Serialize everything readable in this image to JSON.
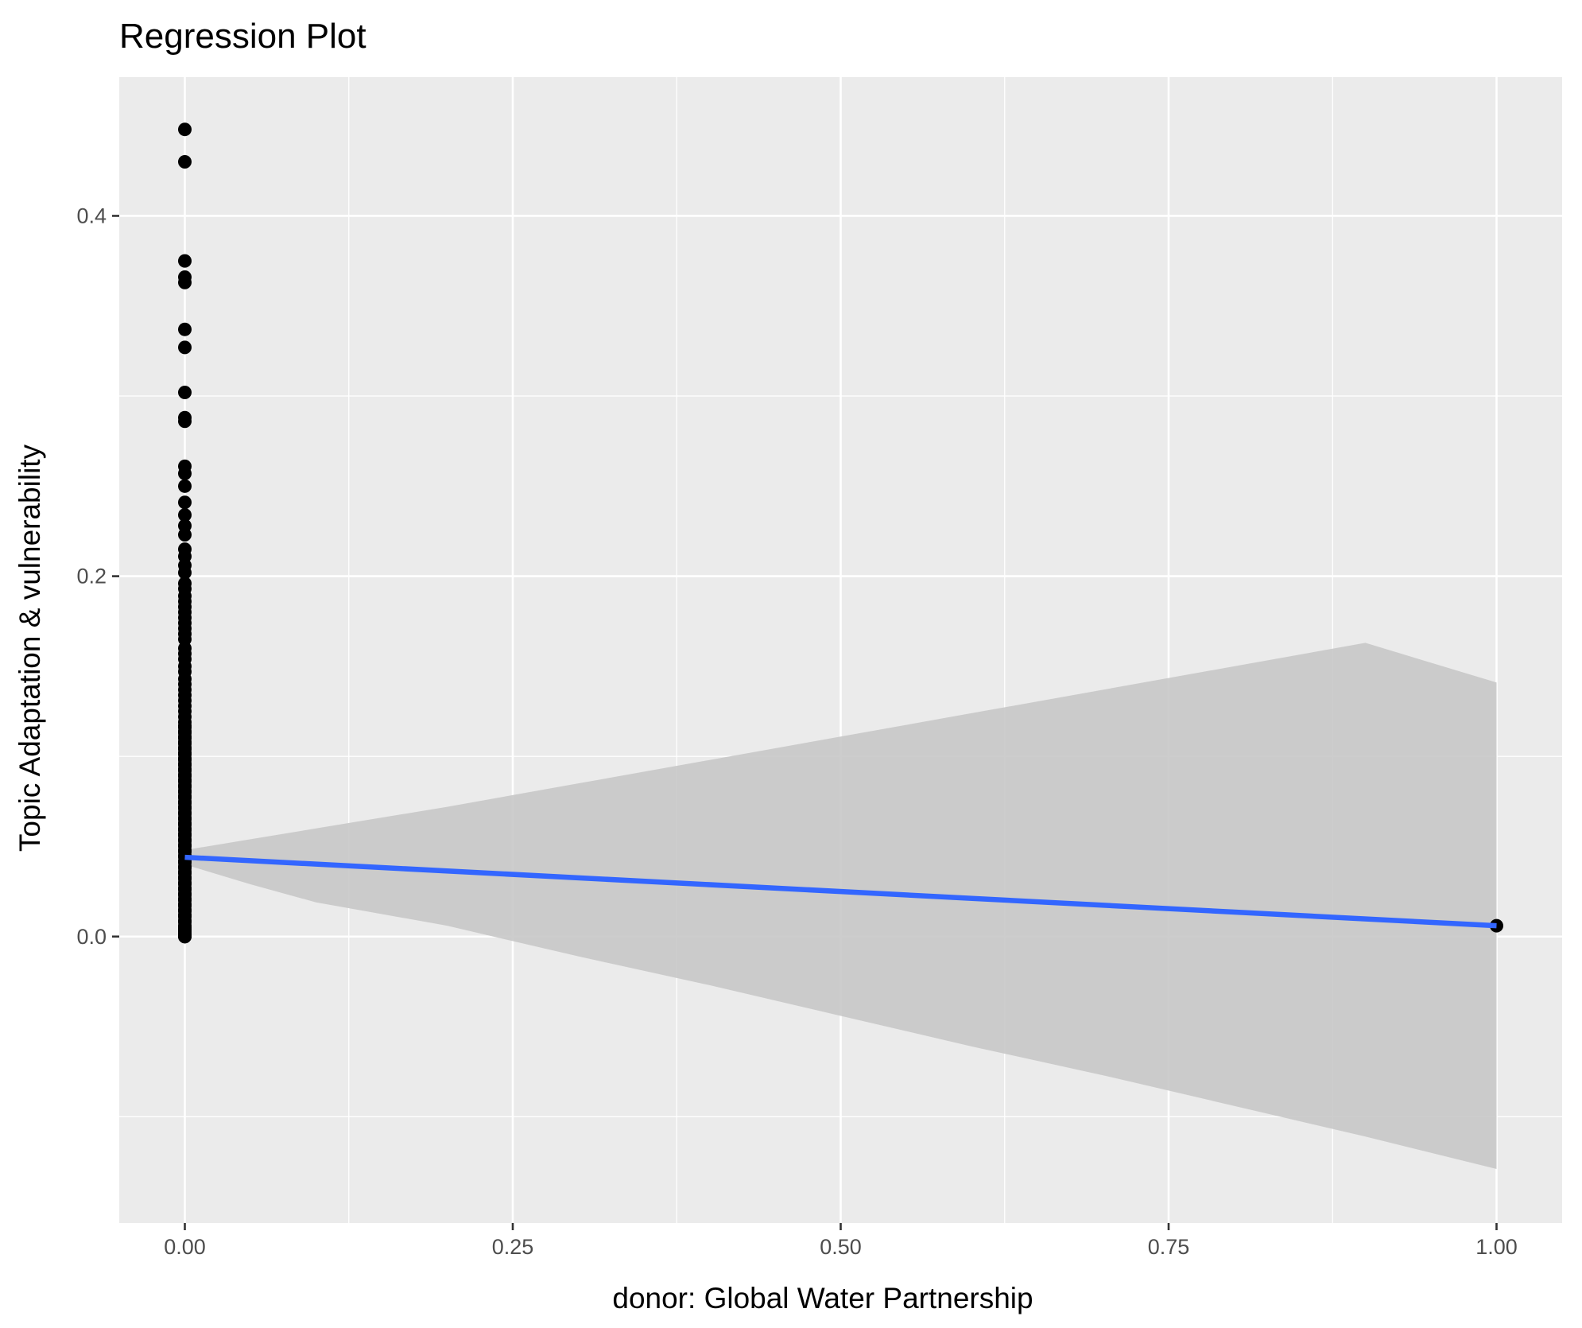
{
  "chart_data": {
    "type": "scatter",
    "title": "Regression Plot",
    "xlabel": "donor: Global Water Partnership",
    "ylabel": "Topic Adaptation & vulnerability",
    "xlim": [
      -0.05,
      1.05
    ],
    "ylim": [
      -0.159,
      0.477
    ],
    "x_ticks": [
      0.0,
      0.25,
      0.5,
      0.75,
      1.0
    ],
    "x_tick_labels": [
      "0.00",
      "0.25",
      "0.50",
      "0.75",
      "1.00"
    ],
    "y_ticks": [
      0.0,
      0.2,
      0.4
    ],
    "y_tick_labels": [
      "0.0",
      "0.2",
      "0.4"
    ],
    "grid": true,
    "legend": "none",
    "points": {
      "color": "#000000",
      "x": [
        0,
        0,
        0,
        0,
        0,
        0,
        0,
        0,
        0,
        0,
        0,
        0,
        0,
        0,
        0,
        0,
        0,
        0,
        0,
        0,
        0,
        0,
        0,
        0,
        0,
        0,
        0,
        0,
        0,
        0,
        0,
        0,
        0,
        0,
        0,
        0,
        0,
        0,
        0,
        0,
        0,
        0,
        0,
        0,
        0,
        0,
        0,
        0,
        0,
        0,
        0,
        0,
        0,
        0,
        0,
        0,
        0,
        0,
        0,
        0,
        0,
        0,
        0,
        0,
        0,
        0,
        0,
        0,
        0,
        0,
        0,
        0,
        0,
        0,
        0,
        0,
        0,
        0,
        0,
        0,
        0,
        0,
        0,
        0,
        0,
        0,
        0,
        0,
        0,
        0,
        0,
        0,
        0,
        0,
        0,
        0,
        0,
        0,
        0,
        0,
        0,
        0,
        0,
        0,
        0,
        0,
        0,
        0,
        0,
        0,
        0,
        0,
        0,
        0,
        0,
        0,
        0,
        0,
        0,
        0,
        0,
        0,
        0,
        0,
        0,
        0,
        0,
        0,
        0,
        1
      ],
      "y": [
        0.448,
        0.43,
        0.375,
        0.366,
        0.363,
        0.337,
        0.327,
        0.302,
        0.288,
        0.286,
        0.261,
        0.257,
        0.25,
        0.241,
        0.234,
        0.228,
        0.223,
        0.215,
        0.211,
        0.206,
        0.202,
        0.196,
        0.193,
        0.189,
        0.186,
        0.183,
        0.18,
        0.177,
        0.174,
        0.171,
        0.168,
        0.165,
        0.16,
        0.157,
        0.154,
        0.15,
        0.147,
        0.143,
        0.14,
        0.137,
        0.134,
        0.131,
        0.128,
        0.125,
        0.122,
        0.119,
        0.116,
        0.113,
        0.11,
        0.107,
        0.104,
        0.101,
        0.098,
        0.095,
        0.092,
        0.089,
        0.086,
        0.083,
        0.08,
        0.077,
        0.074,
        0.071,
        0.068,
        0.065,
        0.062,
        0.059,
        0.056,
        0.053,
        0.05,
        0.047,
        0.044,
        0.041,
        0.038,
        0.035,
        0.032,
        0.029,
        0.026,
        0.023,
        0.02,
        0.017,
        0.014,
        0.011,
        0.008,
        0.006,
        0.004,
        0.002,
        0.001,
        0.0,
        0.0,
        0.0,
        0.003,
        0.005,
        0.009,
        0.012,
        0.015,
        0.018,
        0.021,
        0.024,
        0.027,
        0.03,
        0.033,
        0.036,
        0.039,
        0.042,
        0.045,
        0.048,
        0.051,
        0.054,
        0.057,
        0.06,
        0.063,
        0.066,
        0.069,
        0.072,
        0.075,
        0.078,
        0.081,
        0.084,
        0.087,
        0.09,
        0.093,
        0.096,
        0.099,
        0.102,
        0.105,
        0.108,
        0.111,
        0.114,
        0.117,
        0.006
      ]
    },
    "regression_line": {
      "color": "#3366ff",
      "x": [
        0.0,
        1.0
      ],
      "y": [
        0.044,
        0.006
      ]
    },
    "confidence_band": {
      "color": "#c8c8c8",
      "x": [
        0.0,
        0.05,
        0.1,
        0.2,
        0.3,
        0.4,
        0.5,
        0.6,
        0.7,
        0.8,
        0.9,
        1.0
      ],
      "lower": [
        0.04,
        0.029,
        0.019,
        0.006,
        -0.011,
        -0.027,
        -0.044,
        -0.061,
        -0.077,
        -0.094,
        -0.111,
        -0.129
      ],
      "upper": [
        0.048,
        0.054,
        0.06,
        0.072,
        0.085,
        0.098,
        0.111,
        0.124,
        0.137,
        0.15,
        0.163,
        0.141
      ]
    },
    "panel_background": "#ebebeb",
    "grid_color": "#ffffff"
  }
}
